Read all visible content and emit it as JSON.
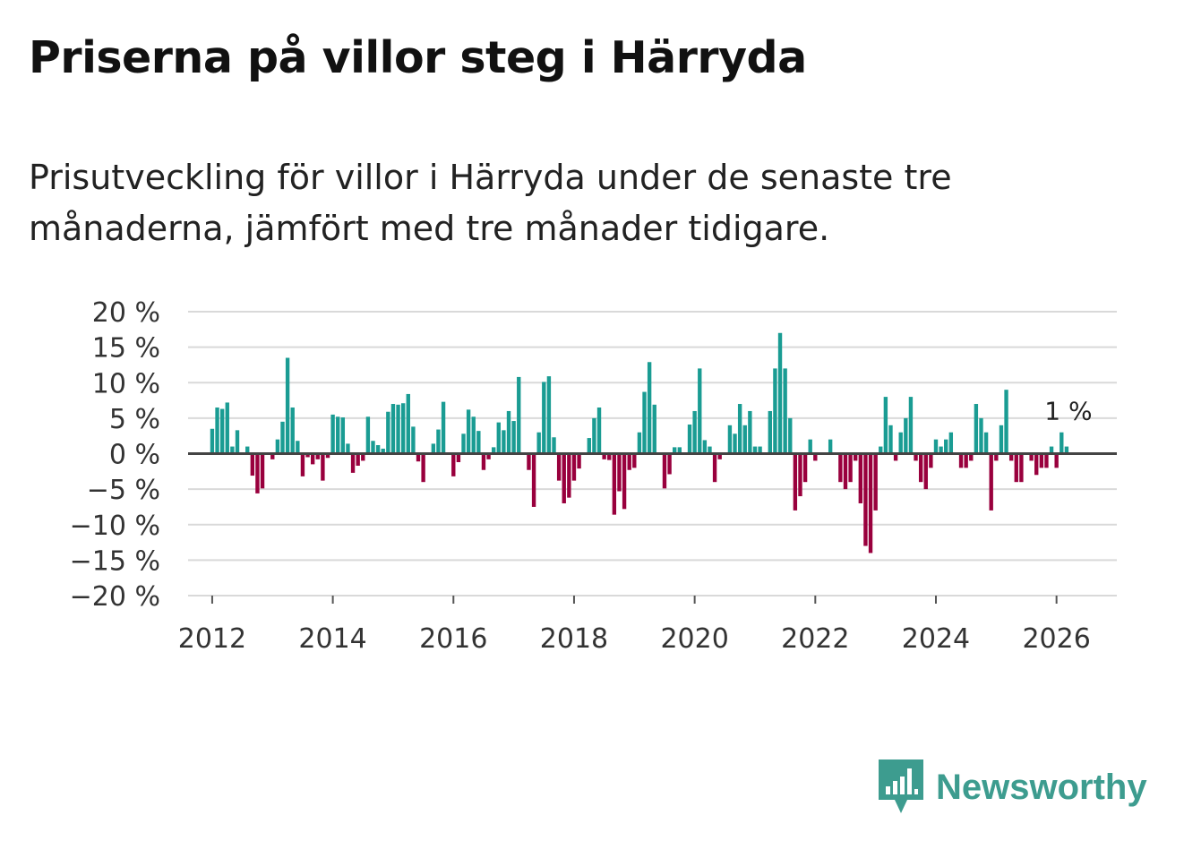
{
  "title": "Priserna på villor steg i Härryda",
  "subtitle": "Prisutveckling för villor i Härryda under de senaste tre månaderna, jämfört med tre månader tidigare.",
  "brand": "Newsworthy",
  "colors": {
    "positive": "#1a9c93",
    "negative": "#99003d",
    "brand": "#3d9c8f",
    "grid": "#d9d9d9",
    "baseline": "#444444"
  },
  "chart_data": {
    "type": "bar",
    "ylim": [
      -20,
      20
    ],
    "yticks": [
      20,
      15,
      10,
      5,
      0,
      -5,
      -10,
      -15,
      -20
    ],
    "ytick_labels": [
      "20 %",
      "15 %",
      "10 %",
      "5 %",
      "0 %",
      "−5 %",
      "−10 %",
      "−15 %",
      "−20 %"
    ],
    "xlim": [
      2011.6,
      2027.0
    ],
    "xticks": [
      2012,
      2014,
      2016,
      2018,
      2020,
      2022,
      2024,
      2026
    ],
    "xtick_labels": [
      "2012",
      "2014",
      "2016",
      "2018",
      "2020",
      "2022",
      "2024",
      "2026"
    ],
    "annotation": "1 %",
    "series": [
      {
        "name": "Prisutveckling",
        "start_year": 2012,
        "start_month": 1,
        "values": [
          3.5,
          6.5,
          6.3,
          7.2,
          1.0,
          3.3,
          0,
          1.0,
          -3.1,
          -5.6,
          -4.9,
          0,
          -0.8,
          2.0,
          4.5,
          13.5,
          6.5,
          1.8,
          -3.2,
          -0.5,
          -1.5,
          -0.8,
          -3.8,
          -0.6,
          5.5,
          5.2,
          5.1,
          1.4,
          -2.7,
          -1.7,
          -1.0,
          5.2,
          1.8,
          1.2,
          0.7,
          5.9,
          7.0,
          6.9,
          7.1,
          8.4,
          3.8,
          -1.1,
          -4.0,
          0,
          1.4,
          3.4,
          7.3,
          0,
          -3.2,
          -1.2,
          2.8,
          6.2,
          5.2,
          3.2,
          -2.3,
          -0.8,
          0.9,
          4.4,
          3.3,
          6.0,
          4.6,
          10.8,
          0,
          -2.3,
          -7.5,
          3.0,
          10.1,
          10.9,
          2.3,
          -3.8,
          -7.0,
          -6.2,
          -3.8,
          -2.1,
          0,
          2.2,
          5.0,
          6.5,
          -0.8,
          -0.9,
          -8.6,
          -5.3,
          -7.8,
          -2.3,
          -2.0,
          3.0,
          8.7,
          12.9,
          6.9,
          0,
          -4.9,
          -2.9,
          0.9,
          0.9,
          0,
          4.1,
          6.0,
          12.0,
          1.9,
          1.0,
          -4.0,
          -0.8,
          0,
          4.0,
          2.8,
          7.0,
          4.0,
          6.0,
          1.0,
          1.0,
          0,
          6.0,
          12.0,
          17.0,
          12.0,
          5.0,
          -8.0,
          -6.0,
          -4.0,
          2.0,
          -1.0,
          0,
          0,
          2.0,
          0,
          -4.0,
          -5.0,
          -4.0,
          -1.0,
          -7.0,
          -13.0,
          -14.0,
          -8.0,
          1.0,
          8.0,
          4.0,
          -1.0,
          3.0,
          5.0,
          8.0,
          -1.0,
          -4.0,
          -5.0,
          -2.0,
          2.0,
          1.0,
          2.0,
          3.0,
          0,
          -2.0,
          -2.0,
          -1.0,
          7.0,
          5.0,
          3.0,
          -8.0,
          -1.0,
          4.0,
          9.0,
          -1.0,
          -4.0,
          -4.0,
          0,
          -1.0,
          -3.0,
          -2.0,
          -2.0,
          1.0,
          -2.0,
          3.0,
          1.0
        ]
      }
    ]
  }
}
